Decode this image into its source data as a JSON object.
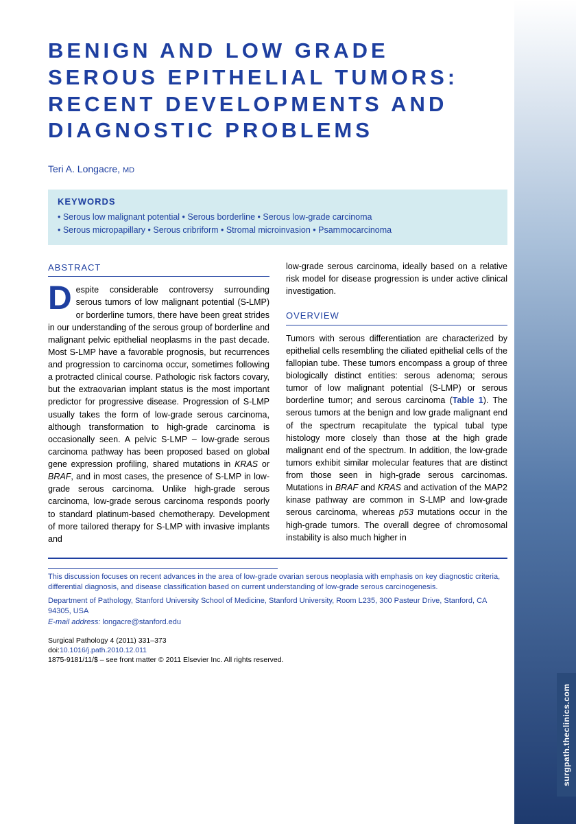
{
  "title": "BENIGN AND LOW GRADE SEROUS EPITHELIAL TUMORS: RECENT DEVELOPMENTS AND DIAGNOSTIC PROBLEMS",
  "author_name": "Teri A. Longacre,",
  "author_degree": "MD",
  "keywords_label": "KEYWORDS",
  "keywords_line1": "• Serous low malignant potential • Serous borderline • Serous low-grade carcinoma",
  "keywords_line2": "• Serous micropapillary • Serous cribriform • Stromal microinvasion • Psammocarcinoma",
  "abstract_header": "ABSTRACT",
  "abstract_first_letter": "D",
  "abstract_body": "espite considerable controversy surrounding serous tumors of low malignant potential (S-LMP) or borderline tumors, there have been great strides in our understanding of the serous group of borderline and malignant pelvic epithelial neoplasms in the past decade. Most S-LMP have a favorable prognosis, but recurrences and progression to carcinoma occur, sometimes following a protracted clinical course. Pathologic risk factors covary, but the extraovarian implant status is the most important predictor for progressive disease. Progression of S-LMP usually takes the form of low-grade serous carcinoma, although transformation to high-grade carcinoma is occasionally seen. A pelvic S-LMP – low-grade serous carcinoma pathway has been proposed based on global gene expression profiling, shared mutations in ",
  "abstract_gene1": "KRAS",
  "abstract_or": " or ",
  "abstract_gene2": "BRAF",
  "abstract_cont": ", and in most cases, the presence of S-LMP in low-grade serous carcinoma. Unlike high-grade serous carcinoma, low-grade serous carcinoma responds poorly to standard platinum-based chemotherapy. Development of more tailored therapy for S-LMP with invasive implants and",
  "col2_top": "low-grade serous carcinoma, ideally based on a relative risk model for disease progression is under active clinical investigation.",
  "overview_header": "OVERVIEW",
  "overview_body1": "Tumors with serous differentiation are characterized by epithelial cells resembling the ciliated epithelial cells of the fallopian tube. These tumors encompass a group of three biologically distinct entities: serous adenoma; serous tumor of low malignant potential (S-LMP) or serous borderline tumor; and serous carcinoma (",
  "table_ref": "Table 1",
  "overview_body2": "). The serous tumors at the benign and low grade malignant end of the spectrum recapitulate the typical tubal type histology more closely than those at the high grade malignant end of the spectrum. In addition, the low-grade tumors exhibit similar molecular features that are distinct from those seen in high-grade serous carcinomas. Mutations in ",
  "overview_gene1": "BRAF",
  "overview_and": " and ",
  "overview_gene2": "KRAS",
  "overview_body3": " and activation of the MAP2 kinase pathway are common in S-LMP and low-grade serous carcinoma, whereas ",
  "overview_gene3": "p53",
  "overview_body4": " mutations occur in the high-grade tumors. The overall degree of chromosomal instability is also much higher in",
  "footer_desc": "This discussion focuses on recent advances in the area of low-grade ovarian serous neoplasia with emphasis on key diagnostic criteria, differential diagnosis, and disease classification based on current understanding of low-grade serous carcinogenesis.",
  "footer_addr": "Department of Pathology, Stanford University School of Medicine, Stanford University, Room L235, 300 Pasteur Drive, Stanford, CA 94305, USA",
  "email_label": "E-mail address:",
  "email_value": "longacre@stanford.edu",
  "citation_journal": "Surgical Pathology 4 (2011) 331–373",
  "citation_doi_label": "doi:",
  "citation_doi": "10.1016/j.path.2010.12.011",
  "citation_issn": "1875-9181/11/$ – see front matter © 2011 Elsevier Inc. All rights reserved.",
  "side_tab": "surgpath.theclinics.com",
  "colors": {
    "primary_blue": "#1e3fa0",
    "keywords_bg": "#d4ebf0",
    "gradient_start": "#ffffff",
    "gradient_end": "#1e3a6e"
  }
}
